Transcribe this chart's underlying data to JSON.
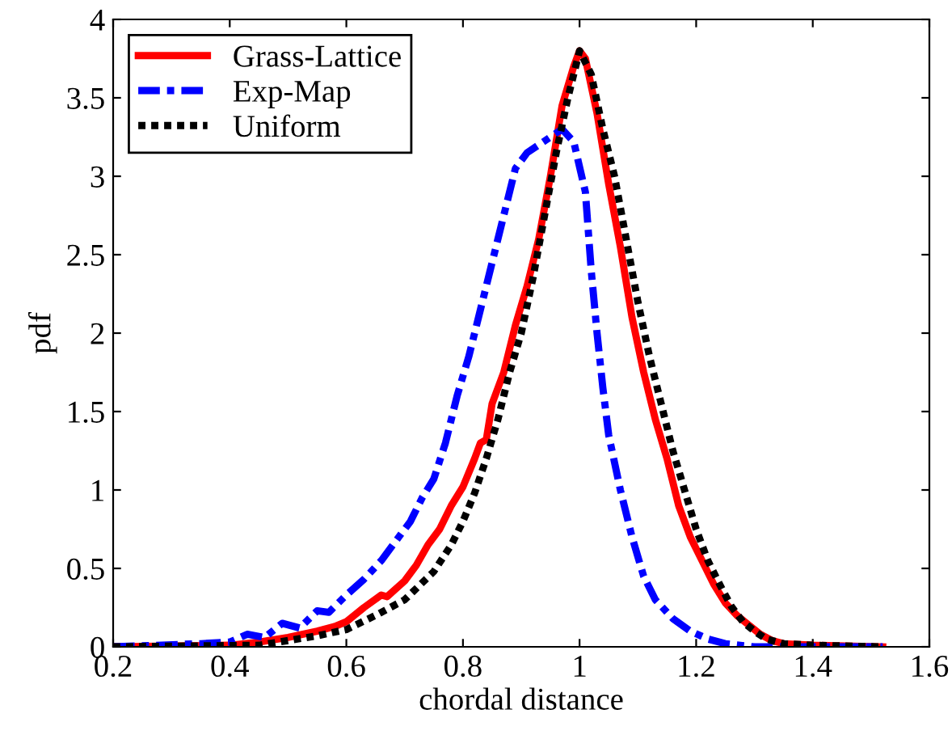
{
  "chart_data": {
    "type": "line",
    "xlabel": "chordal distance",
    "ylabel": "pdf",
    "xlim": [
      0.2,
      1.6
    ],
    "xticks": [
      0.2,
      0.4,
      0.6,
      0.8,
      1,
      1.2,
      1.4,
      1.6
    ],
    "ylim": [
      0,
      4
    ],
    "yticks": [
      0,
      0.5,
      1,
      1.5,
      2,
      2.5,
      3,
      3.5,
      4
    ],
    "grid": false,
    "legend": "top left",
    "marker": "none",
    "series": [
      {
        "name": "Grass-Lattice",
        "color": "#ff0000",
        "line_style": "solid",
        "x": [
          0.2,
          0.4,
          0.45,
          0.5,
          0.55,
          0.58,
          0.6,
          0.63,
          0.66,
          0.67,
          0.7,
          0.72,
          0.74,
          0.76,
          0.78,
          0.8,
          0.82,
          0.83,
          0.84,
          0.85,
          0.87,
          0.89,
          0.91,
          0.93,
          0.95,
          0.97,
          0.99,
          1.0,
          1.01,
          1.03,
          1.05,
          1.07,
          1.09,
          1.11,
          1.13,
          1.15,
          1.17,
          1.19,
          1.21,
          1.23,
          1.25,
          1.27,
          1.29,
          1.31,
          1.33,
          1.35,
          1.4,
          1.52
        ],
        "values": [
          0,
          0.01,
          0.03,
          0.06,
          0.1,
          0.13,
          0.16,
          0.25,
          0.33,
          0.32,
          0.42,
          0.52,
          0.65,
          0.75,
          0.9,
          1.02,
          1.2,
          1.3,
          1.32,
          1.55,
          1.75,
          2.05,
          2.3,
          2.6,
          3.0,
          3.45,
          3.7,
          3.8,
          3.75,
          3.4,
          2.95,
          2.55,
          2.1,
          1.75,
          1.45,
          1.2,
          0.9,
          0.7,
          0.55,
          0.4,
          0.28,
          0.2,
          0.14,
          0.08,
          0.04,
          0.02,
          0.01,
          0
        ]
      },
      {
        "name": "Exp-Map",
        "color": "#0000ff",
        "line_style": "dashdot",
        "x": [
          0.2,
          0.35,
          0.4,
          0.43,
          0.46,
          0.49,
          0.52,
          0.55,
          0.57,
          0.6,
          0.63,
          0.66,
          0.69,
          0.71,
          0.73,
          0.75,
          0.77,
          0.79,
          0.81,
          0.83,
          0.85,
          0.87,
          0.89,
          0.91,
          0.93,
          0.95,
          0.97,
          0.99,
          1.01,
          1.02,
          1.03,
          1.04,
          1.05,
          1.07,
          1.09,
          1.11,
          1.13,
          1.16,
          1.19,
          1.22,
          1.25,
          1.3,
          1.52
        ],
        "values": [
          0,
          0.02,
          0.03,
          0.08,
          0.06,
          0.15,
          0.12,
          0.23,
          0.22,
          0.33,
          0.43,
          0.55,
          0.7,
          0.8,
          0.95,
          1.07,
          1.3,
          1.6,
          1.85,
          2.15,
          2.45,
          2.75,
          3.05,
          3.15,
          3.2,
          3.25,
          3.3,
          3.22,
          2.9,
          2.4,
          2.0,
          1.65,
          1.35,
          1.0,
          0.7,
          0.45,
          0.3,
          0.18,
          0.1,
          0.05,
          0.02,
          0,
          0
        ]
      },
      {
        "name": "Uniform",
        "color": "#000000",
        "line_style": "dotted",
        "x": [
          0.2,
          0.45,
          0.5,
          0.55,
          0.6,
          0.65,
          0.7,
          0.75,
          0.78,
          0.8,
          0.82,
          0.84,
          0.86,
          0.88,
          0.9,
          0.92,
          0.94,
          0.96,
          0.98,
          1.0,
          1.02,
          1.04,
          1.06,
          1.08,
          1.1,
          1.12,
          1.14,
          1.16,
          1.18,
          1.2,
          1.22,
          1.24,
          1.26,
          1.28,
          1.3,
          1.32,
          1.35,
          1.4,
          1.52
        ],
        "values": [
          0,
          0.01,
          0.04,
          0.07,
          0.11,
          0.2,
          0.3,
          0.48,
          0.65,
          0.8,
          0.98,
          1.2,
          1.45,
          1.75,
          2.0,
          2.35,
          2.75,
          3.15,
          3.5,
          3.8,
          3.65,
          3.3,
          3.0,
          2.6,
          2.2,
          1.85,
          1.55,
          1.25,
          1.0,
          0.75,
          0.55,
          0.4,
          0.26,
          0.16,
          0.1,
          0.05,
          0.02,
          0.01,
          0
        ]
      }
    ]
  }
}
